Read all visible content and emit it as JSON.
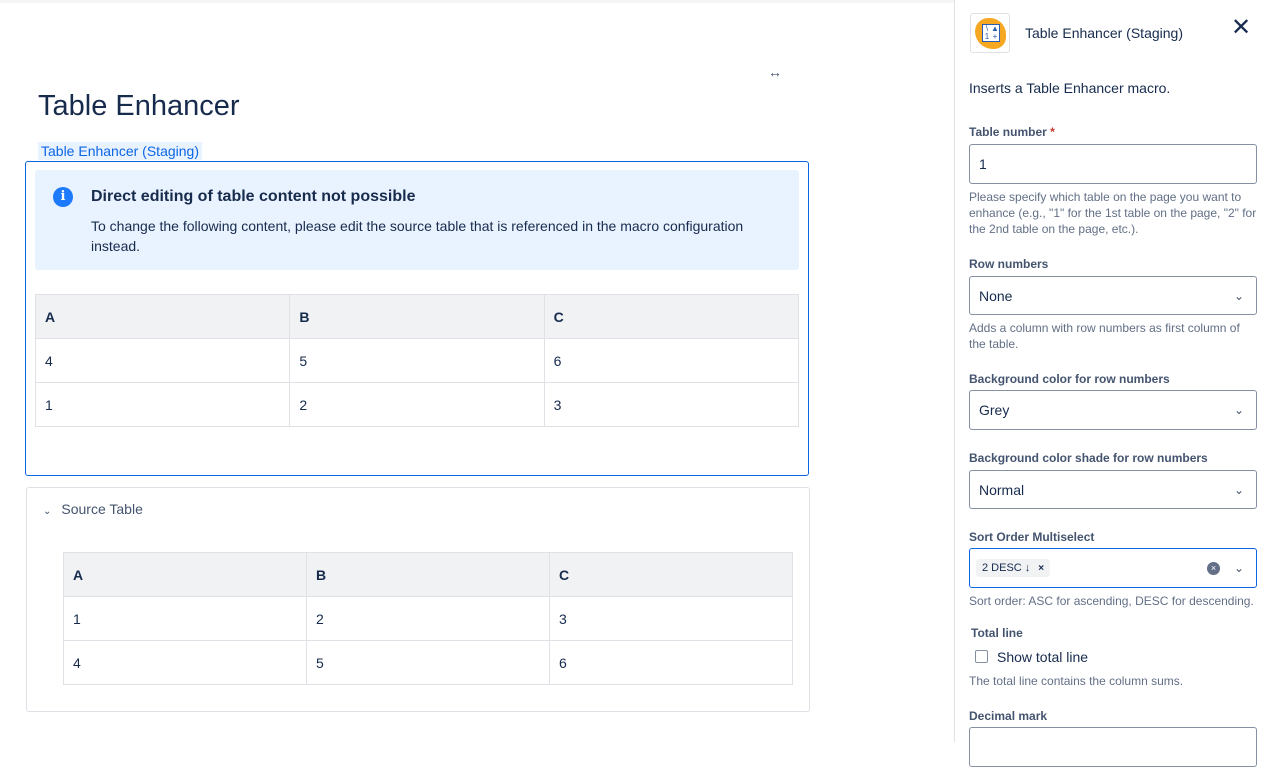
{
  "page": {
    "expand_icon": "↔",
    "title": "Table Enhancer",
    "macro_label": "Table Enhancer (Staging)"
  },
  "info": {
    "icon": "i",
    "title": "Direct editing of table content not possible",
    "body": "To change the following content, please edit the source table that is referenced in the macro configuration instead."
  },
  "enhanced_table": {
    "headers": [
      "A",
      "B",
      "C"
    ],
    "rows": [
      [
        "4",
        "5",
        "6"
      ],
      [
        "1",
        "2",
        "3"
      ]
    ]
  },
  "source": {
    "label": "Source Table",
    "table": {
      "headers": [
        "A",
        "B",
        "C"
      ],
      "rows": [
        [
          "1",
          "2",
          "3"
        ],
        [
          "4",
          "5",
          "6"
        ]
      ]
    }
  },
  "panel": {
    "title": "Table Enhancer (Staging)",
    "close": "✕",
    "description": "Inserts a Table Enhancer macro.",
    "table_number": {
      "label": "Table number",
      "required": "*",
      "value": "1",
      "help": "Please specify which table on the page you want to enhance (e.g., \"1\" for the 1st table on the page, \"2\" for the 2nd table on the page, etc.)."
    },
    "row_numbers": {
      "label": "Row numbers",
      "value": "None",
      "help": "Adds a column with row numbers as first column of the table."
    },
    "bg_color": {
      "label": "Background color for row numbers",
      "value": "Grey"
    },
    "bg_shade": {
      "label": "Background color shade for row numbers",
      "value": "Normal"
    },
    "sort_order": {
      "label": "Sort Order Multiselect",
      "tag": "2 DESC ↓",
      "tag_remove": "×",
      "clear": "×",
      "help": "Sort order: ASC for ascending, DESC for descending."
    },
    "total_line": {
      "label": "Total line",
      "checkbox_label": "Show total line",
      "checked": false,
      "help": "The total line contains the column sums."
    },
    "decimal_mark": {
      "label": "Decimal mark"
    }
  }
}
